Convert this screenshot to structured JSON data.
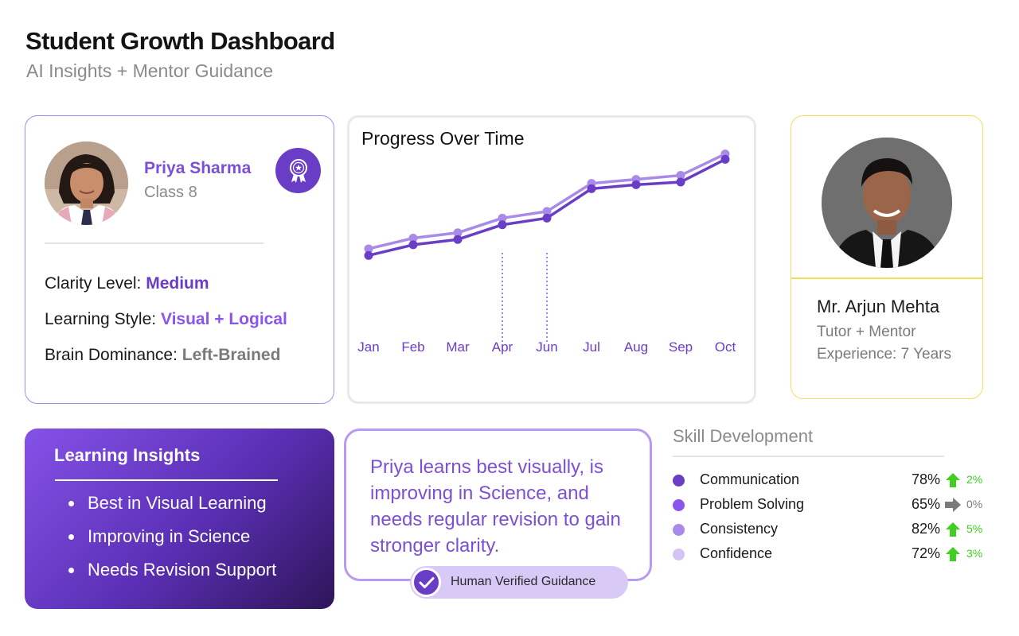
{
  "header": {
    "title": "Student Growth Dashboard",
    "subtitle": "AI Insights + Mentor Guidance"
  },
  "student": {
    "name": "Priya Sharma",
    "class": "Class 8",
    "badge_icon": "award-ribbon-icon",
    "attributes": [
      {
        "label": "Clarity Level: ",
        "value": "Medium",
        "color": "#6a3dc6"
      },
      {
        "label": "Learning Style: ",
        "value": "Visual + Logical",
        "color": "#8a55ec"
      },
      {
        "label": "Brain Dominance: ",
        "value": "Left-Brained",
        "color": "#7a7a7a"
      }
    ]
  },
  "chart_data": {
    "type": "line",
    "title": "Progress Over Time",
    "xlabel": "",
    "ylabel": "",
    "categories": [
      "Jan",
      "Feb",
      "Mar",
      "Apr",
      "Jun",
      "Jul",
      "Aug",
      "Sep",
      "Oct"
    ],
    "ylim": [
      0,
      100
    ],
    "grid": false,
    "series": [
      {
        "color": "#a98ae8",
        "values": [
          28,
          36,
          40,
          51,
          56,
          77,
          80,
          83,
          99
        ]
      },
      {
        "color": "#6a3dc6",
        "values": [
          23,
          31,
          35,
          46,
          51,
          73,
          76,
          78,
          95
        ]
      }
    ],
    "markers": [
      "Apr",
      "Jun"
    ]
  },
  "mentor": {
    "name": "Mr. Arjun Mehta",
    "role": "Tutor + Mentor",
    "experience": "Experience: 7 Years"
  },
  "insights": {
    "title": "Learning Insights",
    "items": [
      "Best in Visual Learning",
      "Improving in Science",
      "Needs Revision Support"
    ]
  },
  "guidance": {
    "text": "Priya learns best visually, is improving in Science, and needs regular revision to gain stronger clarity.",
    "verified_label": "Human Verified Guidance",
    "verified_icon": "check-circle-icon"
  },
  "skills": {
    "title": "Skill Development",
    "items": [
      {
        "name": "Communication",
        "percent": "78%",
        "change": "2%",
        "trend": "up",
        "dot_color": "#6a3dc6",
        "trend_color": "#3ecf1f"
      },
      {
        "name": "Problem Solving",
        "percent": "65%",
        "change": "0%",
        "trend": "flat",
        "dot_color": "#8a55ec",
        "trend_color": "#7a7a7a"
      },
      {
        "name": "Consistency",
        "percent": "82%",
        "change": "5%",
        "trend": "up",
        "dot_color": "#a98ae8",
        "trend_color": "#3ecf1f"
      },
      {
        "name": "Confidence",
        "percent": "72%",
        "change": "3%",
        "trend": "up",
        "dot_color": "#d4c4f4",
        "trend_color": "#3ecf1f"
      }
    ]
  }
}
